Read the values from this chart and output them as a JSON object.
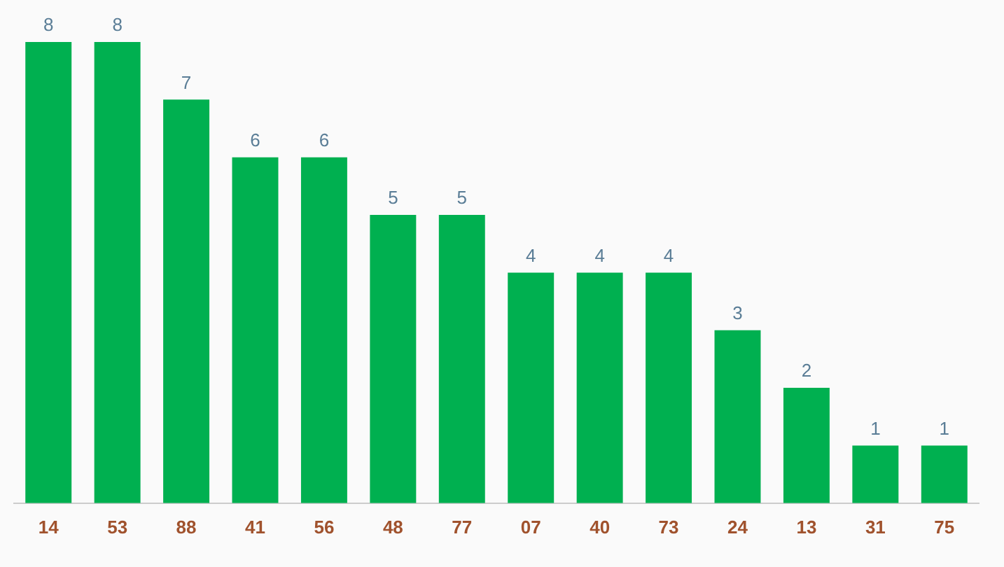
{
  "chart_data": {
    "type": "bar",
    "categories": [
      "14",
      "53",
      "88",
      "41",
      "56",
      "48",
      "77",
      "07",
      "40",
      "73",
      "24",
      "13",
      "31",
      "75"
    ],
    "values": [
      8,
      8,
      7,
      6,
      6,
      5,
      5,
      4,
      4,
      4,
      3,
      2,
      1,
      1
    ],
    "color": "#00b050",
    "data_labels": true,
    "grid": false,
    "legend": false
  }
}
